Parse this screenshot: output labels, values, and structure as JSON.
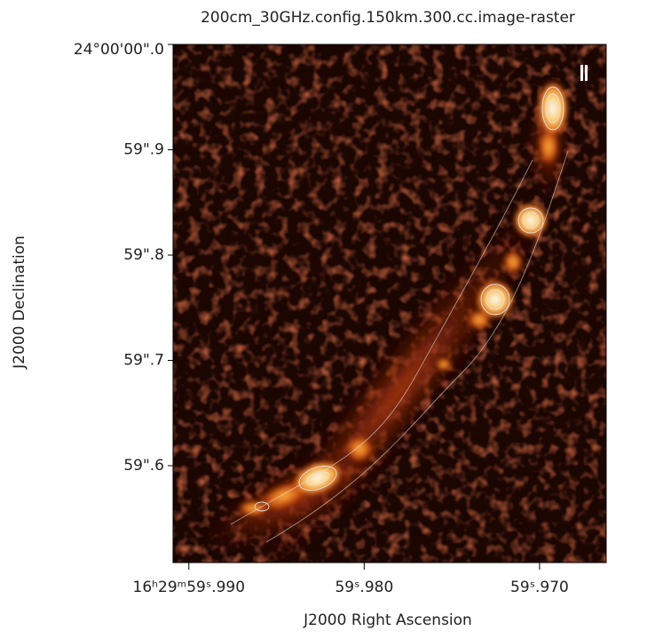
{
  "chart_data": {
    "type": "image",
    "title": "200cm_30GHz.config.150km.300.cc.image-raster",
    "x_label": "J2000 Right Ascension",
    "y_label": "J2000 Declination",
    "xlim": [
      59.9909,
      59.9662
    ],
    "ylim": [
      59.508,
      60.0
    ],
    "xticks": [
      {
        "value": 59.99,
        "label": "16ʰ29ᵐ59ˢ.990"
      },
      {
        "value": 59.98,
        "label": "59ˢ.980"
      },
      {
        "value": 59.97,
        "label": "59ˢ.970"
      }
    ],
    "yticks": [
      {
        "value": 60.0,
        "label": "24°00'00\".0"
      },
      {
        "value": 59.9,
        "label": "59\".9"
      },
      {
        "value": 59.8,
        "label": "59\".8"
      },
      {
        "value": 59.7,
        "label": "59\".7"
      },
      {
        "value": 59.6,
        "label": "59\".6"
      }
    ]
  }
}
